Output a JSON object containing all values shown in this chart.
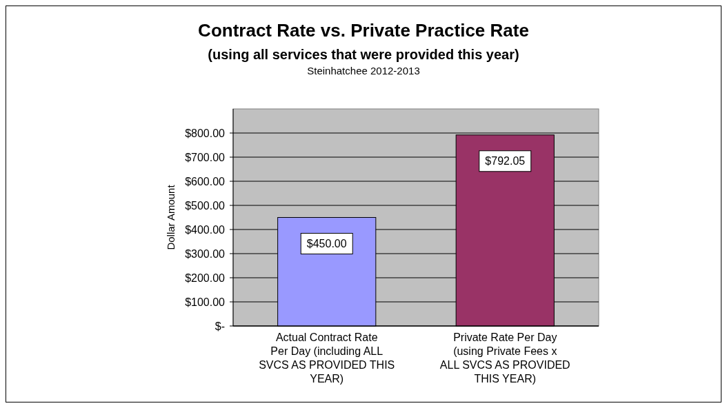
{
  "chart_data": {
    "type": "bar",
    "title": "Contract Rate vs. Private Practice Rate",
    "subtitle": "(using all services that were provided this year)",
    "annotations": [
      "Steinhatchee 2012-2013"
    ],
    "ylabel": "Dollar Amount",
    "categories": [
      "Actual Contract Rate Per Day (including ALL SVCS AS PROVIDED THIS YEAR)",
      "Private Rate Per Day (using Private Fees x ALL SVCS AS PROVIDED THIS YEAR)"
    ],
    "values": [
      450,
      792.05
    ],
    "colors": [
      "#9999ff",
      "#993366"
    ],
    "value_labels": [
      "$450.00",
      "$792.05"
    ],
    "ylim": [
      0,
      900
    ],
    "yticks": [
      {
        "value": 0,
        "label": "$-"
      },
      {
        "value": 100,
        "label": "$100.00"
      },
      {
        "value": 200,
        "label": "$200.00"
      },
      {
        "value": 300,
        "label": "$300.00"
      },
      {
        "value": 400,
        "label": "$400.00"
      },
      {
        "value": 500,
        "label": "$500.00"
      },
      {
        "value": 600,
        "label": "$600.00"
      },
      {
        "value": 700,
        "label": "$700.00"
      },
      {
        "value": 800,
        "label": "$800.00"
      }
    ],
    "grid": "y"
  }
}
